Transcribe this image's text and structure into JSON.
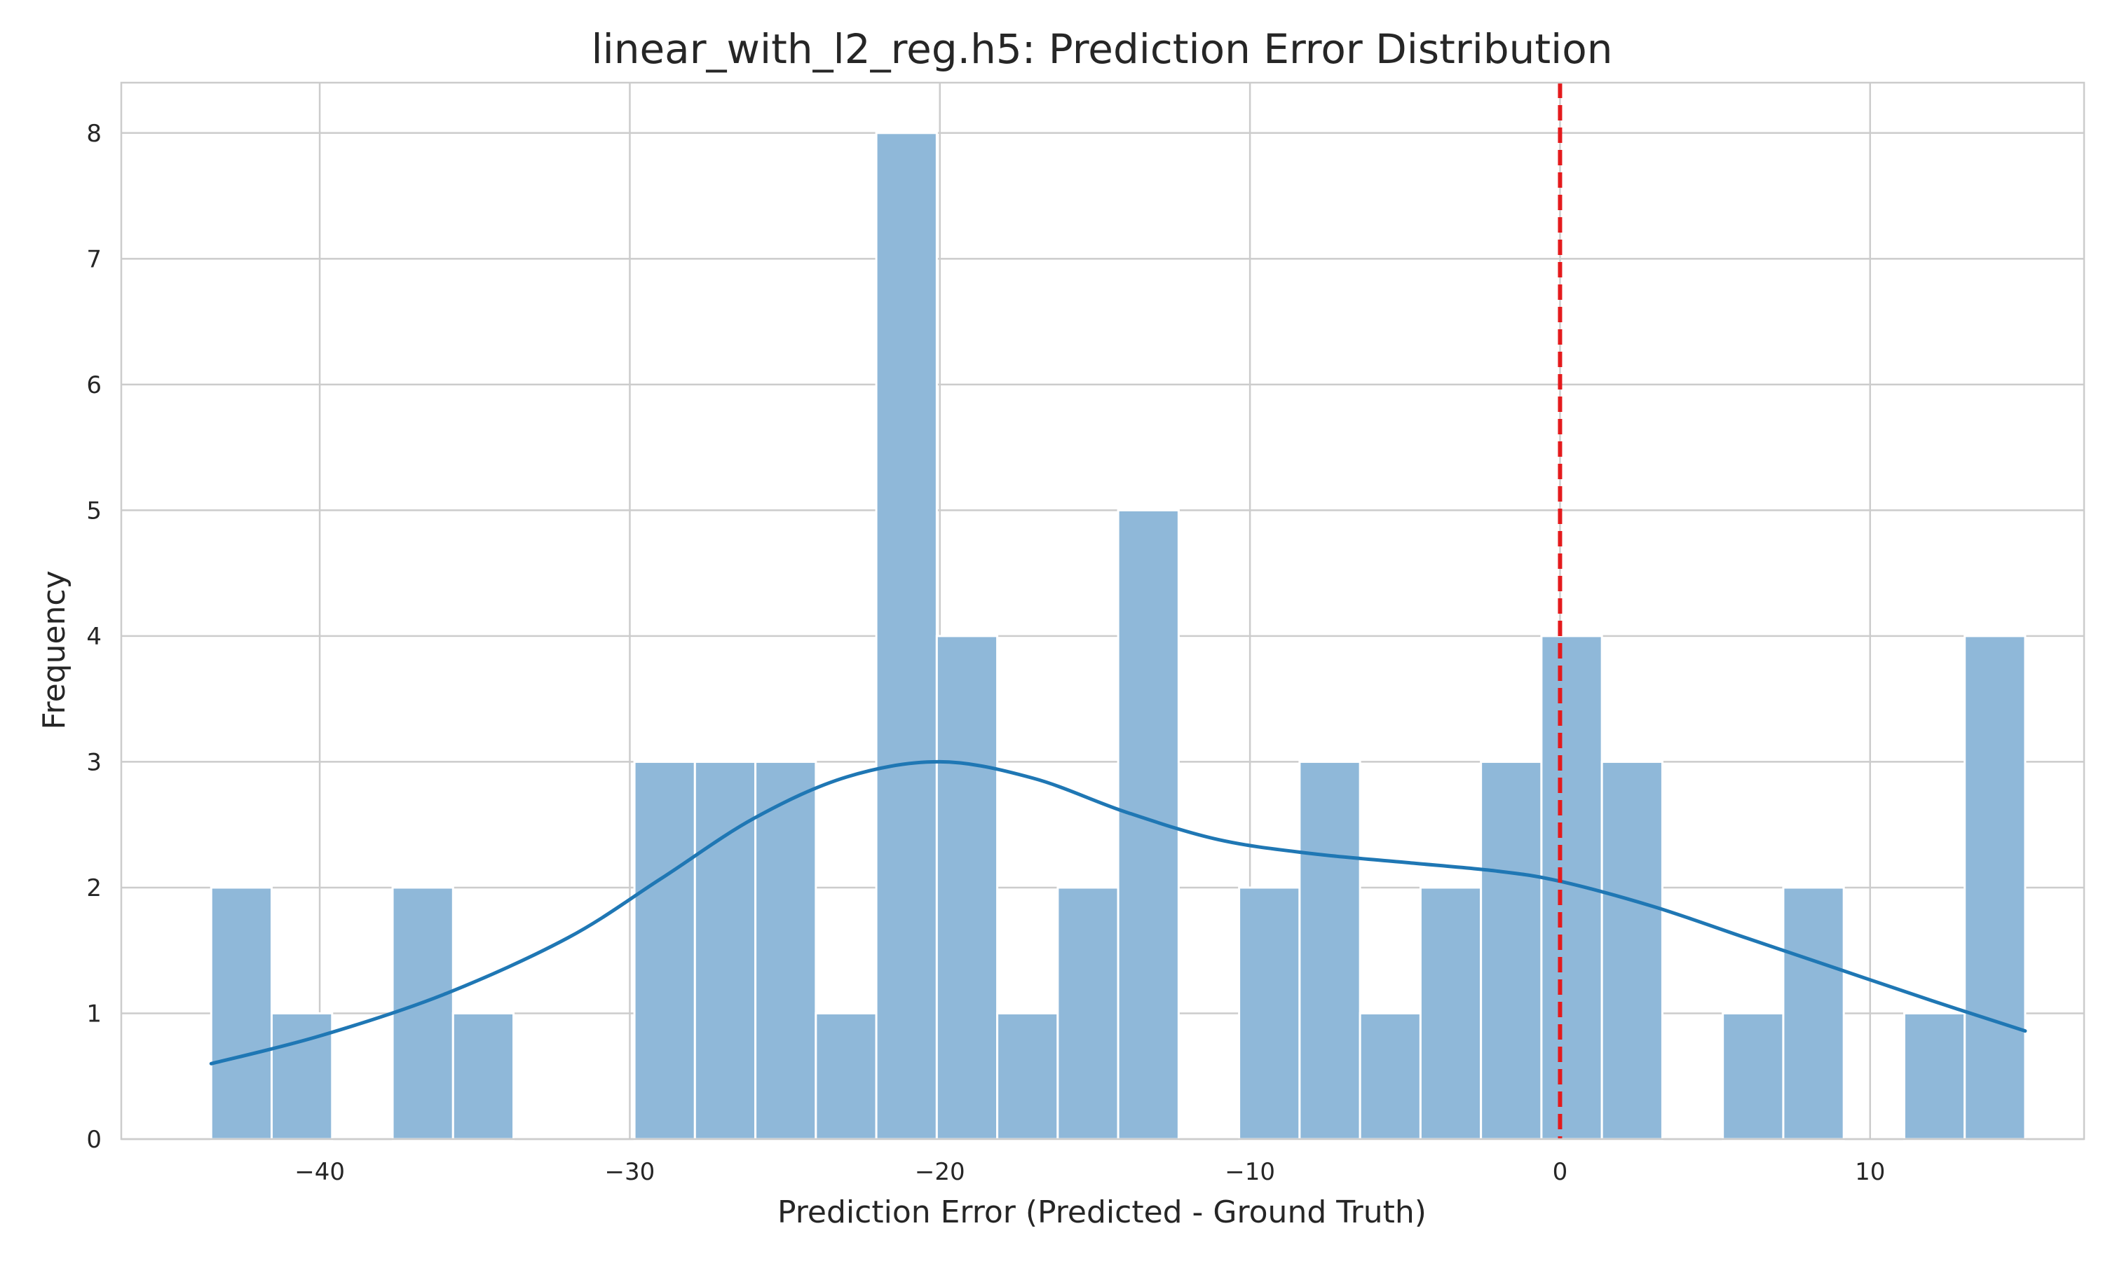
{
  "chart_data": {
    "type": "histogram",
    "title": "linear_with_l2_reg.h5: Prediction Error Distribution",
    "xlabel": "Prediction Error (Predicted - Ground Truth)",
    "ylabel": "Frequency",
    "xlim": [
      -46.4,
      16.9
    ],
    "ylim": [
      0,
      8.4
    ],
    "xticks": [
      -40,
      -30,
      -20,
      -10,
      0,
      10
    ],
    "yticks": [
      0,
      1,
      2,
      3,
      4,
      5,
      6,
      7,
      8
    ],
    "grid": true,
    "legend": false,
    "bins": {
      "edges": [
        -43.5,
        -41.55,
        -39.6,
        -37.65,
        -35.7,
        -33.75,
        -31.8,
        -29.85,
        -27.9,
        -25.95,
        -24.0,
        -22.05,
        -20.1,
        -18.15,
        -16.2,
        -14.25,
        -12.3,
        -10.35,
        -8.4,
        -6.45,
        -4.5,
        -2.55,
        -0.6,
        1.35,
        3.3,
        5.25,
        7.2,
        9.15,
        11.1,
        13.05,
        15.0
      ],
      "counts": [
        2,
        1,
        0,
        2,
        1,
        0,
        0,
        3,
        3,
        3,
        1,
        8,
        4,
        1,
        2,
        5,
        0,
        2,
        3,
        1,
        2,
        3,
        4,
        3,
        0,
        1,
        2,
        0,
        1,
        4
      ]
    },
    "kde": {
      "x": [
        -43.5,
        -40,
        -36,
        -32,
        -29,
        -26,
        -23,
        -20,
        -17,
        -14,
        -11,
        -8,
        -5,
        -2,
        0,
        3,
        6,
        9,
        12,
        15
      ],
      "y": [
        0.6,
        0.82,
        1.15,
        1.6,
        2.07,
        2.55,
        2.88,
        3.0,
        2.87,
        2.6,
        2.38,
        2.27,
        2.2,
        2.13,
        2.05,
        1.85,
        1.6,
        1.35,
        1.1,
        0.86
      ]
    },
    "reference_line": {
      "x": 0,
      "style": "dashed",
      "color": "#e41a1c"
    },
    "colors": {
      "bar_fill": "#8fb8d9",
      "bar_edge": "#ffffff",
      "kde_line": "#1f77b4",
      "grid": "#cccccc",
      "axes_edge": "#cccccc"
    }
  }
}
